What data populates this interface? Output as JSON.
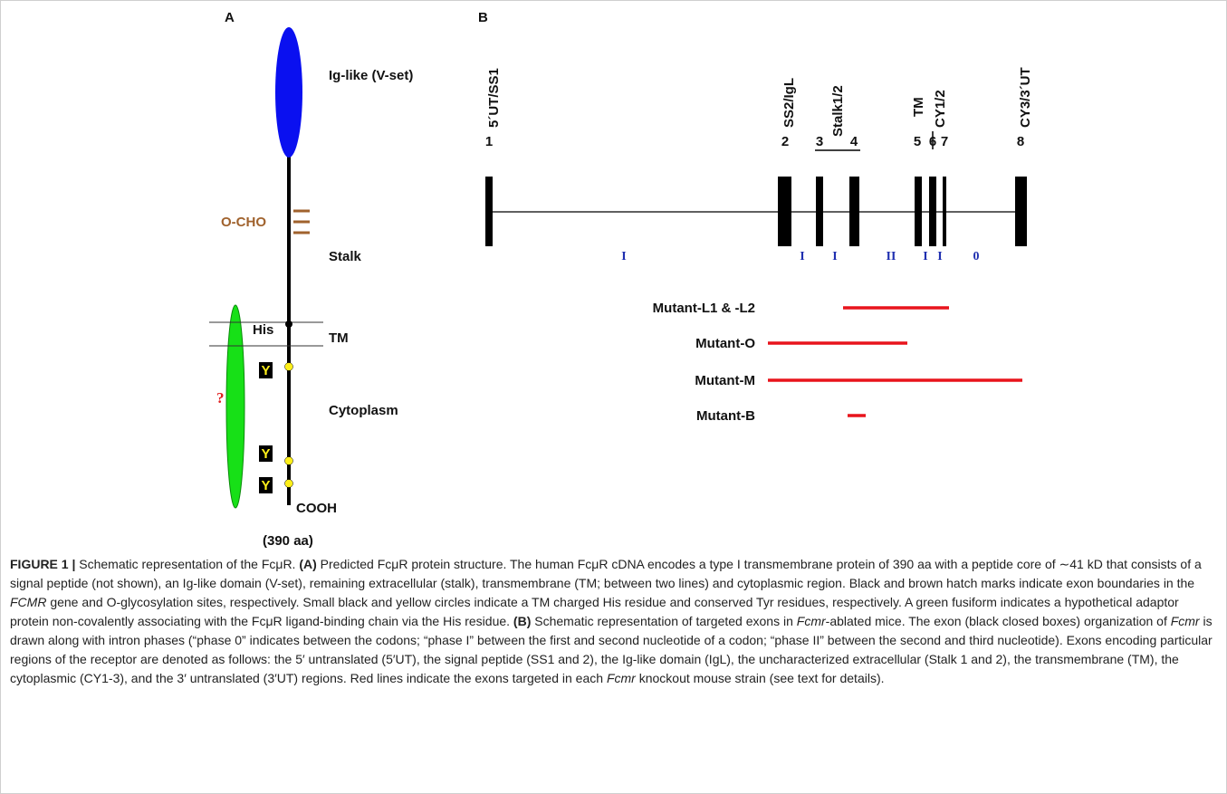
{
  "panel_a": {
    "label": "A",
    "domain": "Ig-like (V-set)",
    "glyco": "O-CHO",
    "stalk": "Stalk",
    "his": "His",
    "tm": "TM",
    "question": "?",
    "cytoplasm": "Cytoplasm",
    "tyr": [
      "Y",
      "Y",
      "Y"
    ],
    "cooh": "COOH",
    "length": "(390 aa)"
  },
  "panel_b": {
    "label": "B",
    "regions": [
      "5´UT/SS1",
      "SS2/IgL",
      "Stalk1/2",
      "TM",
      "CY1/2",
      "CY3/3´UT"
    ],
    "exons": [
      "1",
      "2",
      "3",
      "4",
      "5",
      "6",
      "7",
      "8"
    ],
    "phases": [
      "I",
      "I",
      "I",
      "II",
      "I",
      "I",
      "0"
    ],
    "mutants": [
      "Mutant-L1 & -L2",
      "Mutant-O",
      "Mutant-M",
      "Mutant-B"
    ]
  },
  "caption": {
    "runs": [
      "FIGURE 1 |",
      " Schematic representation of the FcμR. ",
      "(A)",
      " Predicted FcμR protein structure. The human FcμR cDNA encodes a type I transmembrane protein of 390 aa with a peptide core of ∼41 kD that consists of a signal peptide (not shown), an Ig-like domain (V-set), remaining extracellular (stalk), transmembrane (TM; between two lines) and cytoplasmic region. Black and brown hatch marks indicate exon boundaries in the ",
      "FCMR",
      " gene and O-glycosylation sites, respectively. Small black and yellow circles indicate a TM charged His residue and conserved Tyr residues, respectively. A green fusiform indicates a hypothetical adaptor protein non-covalently associating with the FcμR ligand-binding chain via the His residue. ",
      "(B)",
      " Schematic representation of targeted exons in ",
      "Fcmr",
      "-ablated mice. The exon (black closed boxes) organization of ",
      "Fcmr",
      " is drawn along with intron phases (“phase 0” indicates between the codons; “phase I” between the first and second nucleotide of a codon; “phase II” between the second and third nucleotide). Exons encoding particular regions of the receptor are denoted as follows: the 5′ untranslated (5′UT), the signal peptide (SS1 and 2), the Ig-like domain (IgL), the uncharacterized extracellular (Stalk 1 and 2), the transmembrane (TM), the cytoplasmic (CY1-3), and the 3′ untranslated (3′UT) regions. Red lines indicate the exons targeted in each ",
      "Fcmr",
      " knockout mouse strain (see text for details)."
    ]
  }
}
